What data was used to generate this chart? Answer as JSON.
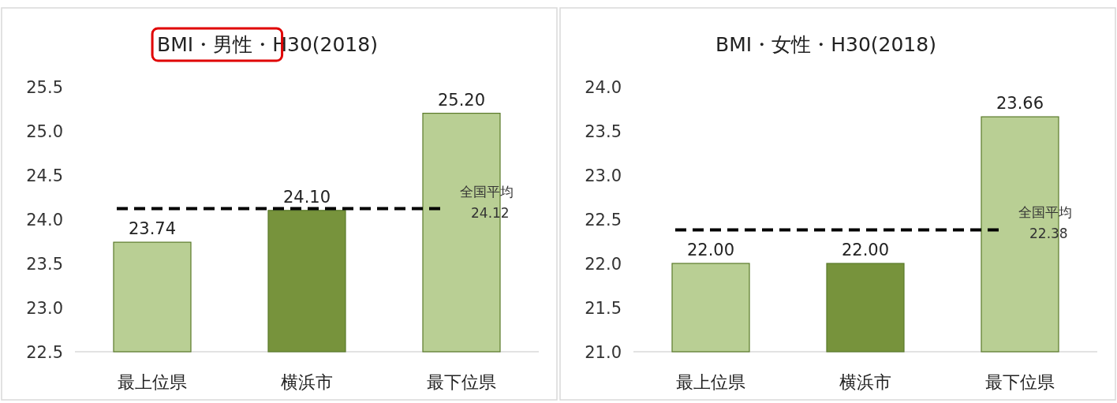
{
  "chart_data": [
    {
      "type": "bar",
      "title": "BMI・男性・H30(2018)",
      "categories": [
        "最上位県",
        "横浜市",
        "最下位県"
      ],
      "values": [
        23.74,
        24.1,
        25.2
      ],
      "colors": [
        "#b9cf94",
        "#77933c",
        "#b9cf94"
      ],
      "ylim": [
        22.5,
        25.5
      ],
      "yticks": [
        {
          "value": 22.5,
          "label": "22.5"
        },
        {
          "value": 23,
          "label": "23.0"
        },
        {
          "value": 23.5,
          "label": "23.5"
        },
        {
          "value": 24,
          "label": "24.0"
        },
        {
          "value": 24.5,
          "label": "24.5"
        },
        {
          "value": 25,
          "label": "25.0"
        },
        {
          "value": 25.5,
          "label": "25.5"
        }
      ],
      "data_labels": true,
      "value_labels": [
        "23.74",
        "24.10",
        "25.20"
      ],
      "ref_lines": [
        {
          "axis": "y",
          "value": 24.12,
          "label": "全国平均\n24.12",
          "color": "#000000",
          "line_style": "dashed"
        }
      ]
    },
    {
      "type": "bar",
      "title": "BMI・女性・H30(2018)",
      "categories": [
        "最上位県",
        "横浜市",
        "最下位県"
      ],
      "values": [
        22.0,
        22.0,
        23.66
      ],
      "colors": [
        "#b9cf94",
        "#77933c",
        "#b9cf94"
      ],
      "ylim": [
        21,
        24
      ],
      "yticks": [
        {
          "value": 21,
          "label": "21.0"
        },
        {
          "value": 21.5,
          "label": "21.5"
        },
        {
          "value": 22,
          "label": "22.0"
        },
        {
          "value": 22.5,
          "label": "22.5"
        },
        {
          "value": 23,
          "label": "23.0"
        },
        {
          "value": 23.5,
          "label": "23.5"
        },
        {
          "value": 24,
          "label": "24.0"
        }
      ],
      "data_labels": true,
      "value_labels": [
        "22.00",
        "22.00",
        "23.66"
      ],
      "ref_lines": [
        {
          "axis": "y",
          "value": 22.38,
          "label": "全国平均\n22.38",
          "color": "#000000",
          "line_style": "dashed"
        }
      ]
    }
  ]
}
